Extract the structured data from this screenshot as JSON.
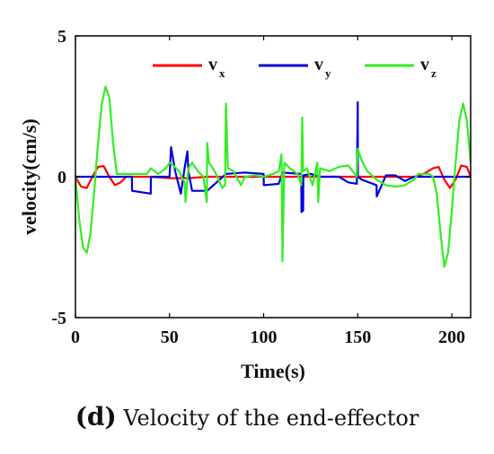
{
  "chart_data": {
    "type": "line",
    "title": "",
    "xlabel": "Time(s)",
    "ylabel": "velocity(cm/s)",
    "xlim": [
      0,
      210
    ],
    "ylim": [
      -5,
      5
    ],
    "xticks": [
      0,
      50,
      100,
      150,
      200
    ],
    "yticks": [
      -5,
      0,
      5
    ],
    "grid": false,
    "legend_position": "top-center",
    "series": [
      {
        "name": "v_x",
        "label_main": "v",
        "label_sub": "x",
        "color": "#ff0000",
        "x": [
          0,
          3,
          6,
          9,
          12,
          15,
          18,
          21,
          24,
          27,
          30,
          40,
          50,
          60,
          70,
          80,
          90,
          100,
          110,
          120,
          130,
          140,
          150,
          160,
          170,
          180,
          185,
          190,
          193,
          196,
          199,
          202,
          205,
          208,
          210
        ],
        "y": [
          0,
          -0.35,
          -0.4,
          0,
          0.35,
          0.38,
          0,
          -0.3,
          -0.2,
          0,
          0,
          0,
          -0.05,
          -0.05,
          0,
          0,
          0,
          0,
          0,
          0,
          0,
          0,
          0,
          0,
          0,
          0,
          0.1,
          0.3,
          0.35,
          -0.1,
          -0.4,
          -0.1,
          0.4,
          0.35,
          0
        ]
      },
      {
        "name": "v_y",
        "label_main": "v",
        "label_sub": "y",
        "color": "#0000dd",
        "x": [
          0,
          30,
          30.1,
          40,
          40.1,
          50,
          50.8,
          53,
          56,
          58,
          59.5,
          60,
          62,
          70,
          80,
          90,
          100,
          100.1,
          108,
          110,
          120,
          120.1,
          121,
          121.1,
          125,
          130,
          140,
          145,
          149.5,
          149.6,
          150,
          150.1,
          152,
          160,
          160.1,
          165,
          170,
          175,
          180,
          210
        ],
        "y": [
          0,
          0,
          -0.5,
          -0.6,
          0,
          0,
          1.05,
          0.2,
          -0.6,
          0.3,
          0.9,
          0.2,
          -0.5,
          -0.5,
          0.1,
          0.15,
          0.1,
          -0.3,
          -0.25,
          0.15,
          0.1,
          -1.25,
          -1.2,
          0.05,
          0.1,
          0,
          0,
          -0.2,
          -0.25,
          0.2,
          2.65,
          0,
          -0.1,
          -0.3,
          -0.7,
          0.05,
          0.05,
          -0.15,
          0,
          0
        ]
      },
      {
        "name": "v_z",
        "label_main": "v",
        "label_sub": "z",
        "color": "#33ee22",
        "x": [
          0,
          2,
          4,
          6,
          8,
          10,
          12,
          14,
          16,
          18,
          20,
          22,
          25,
          28,
          30,
          34,
          38,
          40,
          44,
          48,
          50,
          52,
          55,
          58,
          58.5,
          60,
          62,
          65,
          68,
          69.8,
          70,
          71,
          74,
          78,
          79.5,
          80,
          81,
          84,
          88,
          90,
          95,
          100,
          105,
          108,
          109.5,
          110,
          111,
          114,
          118,
          120,
          120.5,
          121,
          123,
          126,
          128.5,
          129,
          130,
          135,
          140,
          145,
          149.5,
          150,
          152,
          155,
          160,
          165,
          170,
          175,
          180,
          182,
          185,
          188,
          190,
          192,
          194,
          196,
          198,
          200,
          202,
          204,
          206,
          208,
          210
        ],
        "y": [
          0,
          -1.5,
          -2.5,
          -2.7,
          -2.0,
          -0.5,
          1.2,
          2.6,
          3.2,
          2.8,
          1.2,
          0.1,
          0.1,
          0.1,
          0.1,
          0.1,
          0.1,
          0.3,
          0.1,
          0.3,
          0.5,
          0.4,
          0.2,
          -0.2,
          -0.9,
          0.3,
          0.5,
          0.2,
          0,
          -0.9,
          1.2,
          0.5,
          0.2,
          -0.4,
          -0.3,
          2.6,
          0.3,
          0.2,
          -0.3,
          0,
          0.05,
          0,
          0.1,
          0.2,
          0.8,
          -3.0,
          0.5,
          0.3,
          0.1,
          -0.3,
          2.1,
          0.2,
          0.3,
          -0.3,
          0.5,
          -0.9,
          0.3,
          0.2,
          0.35,
          0.4,
          0,
          1.0,
          0.6,
          0.2,
          -0.1,
          -0.3,
          -0.35,
          -0.3,
          -0.1,
          0.1,
          0.1,
          0.1,
          0,
          -0.6,
          -2.0,
          -3.2,
          -2.7,
          -1.2,
          0.5,
          2.0,
          2.6,
          2.0,
          0.5
        ]
      }
    ]
  },
  "caption": {
    "tag": "(d)",
    "text": "Velocity of the end-effector"
  }
}
